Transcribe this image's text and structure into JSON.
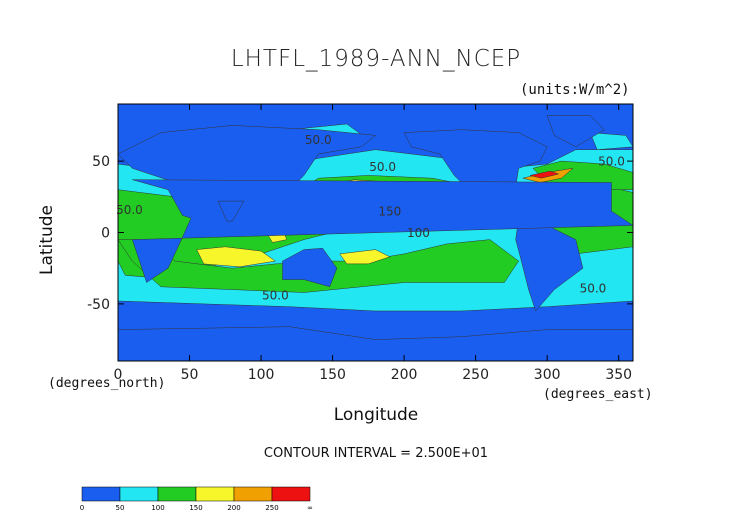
{
  "title": "LHTFL_1989-ANN_NCEP",
  "units": "(units:W/m^2)",
  "ylabel": "Latitude",
  "xlabel": "Longitude",
  "y_unit_label": "(degrees_north)",
  "x_unit_label": "(degrees_east)",
  "contour_text": "CONTOUR INTERVAL = 2.500E+01",
  "colors": {
    "c0": "#1a5ef0",
    "c1": "#22e6f2",
    "c2": "#22cc22",
    "c3": "#f6f62a",
    "c4": "#f0a000",
    "c5": "#ee1111"
  },
  "chart_data": {
    "type": "heatmap",
    "title": "LHTFL_1989-ANN_NCEP",
    "xlabel": "Longitude",
    "ylabel": "Latitude",
    "xlim": [
      0,
      360
    ],
    "ylim": [
      -90,
      90
    ],
    "x_ticks": [
      0,
      50,
      100,
      150,
      200,
      250,
      300,
      350
    ],
    "y_ticks": [
      -50,
      0,
      50
    ],
    "contour_labels": [
      {
        "lon": 140,
        "lat": 62,
        "text": "50.0"
      },
      {
        "lon": 185,
        "lat": 43,
        "text": "50.0"
      },
      {
        "lon": 8,
        "lat": 13,
        "text": "50.0"
      },
      {
        "lon": 190,
        "lat": 12,
        "text": "150"
      },
      {
        "lon": 210,
        "lat": -3,
        "text": "100"
      },
      {
        "lon": 345,
        "lat": 47,
        "text": "50.0"
      },
      {
        "lon": 110,
        "lat": -47,
        "text": "50.0"
      },
      {
        "lon": 332,
        "lat": -42,
        "text": "50.0"
      }
    ],
    "colorbar": {
      "ticks": [
        "0",
        "50",
        "100",
        "150",
        "200",
        "250",
        "∞"
      ]
    }
  }
}
